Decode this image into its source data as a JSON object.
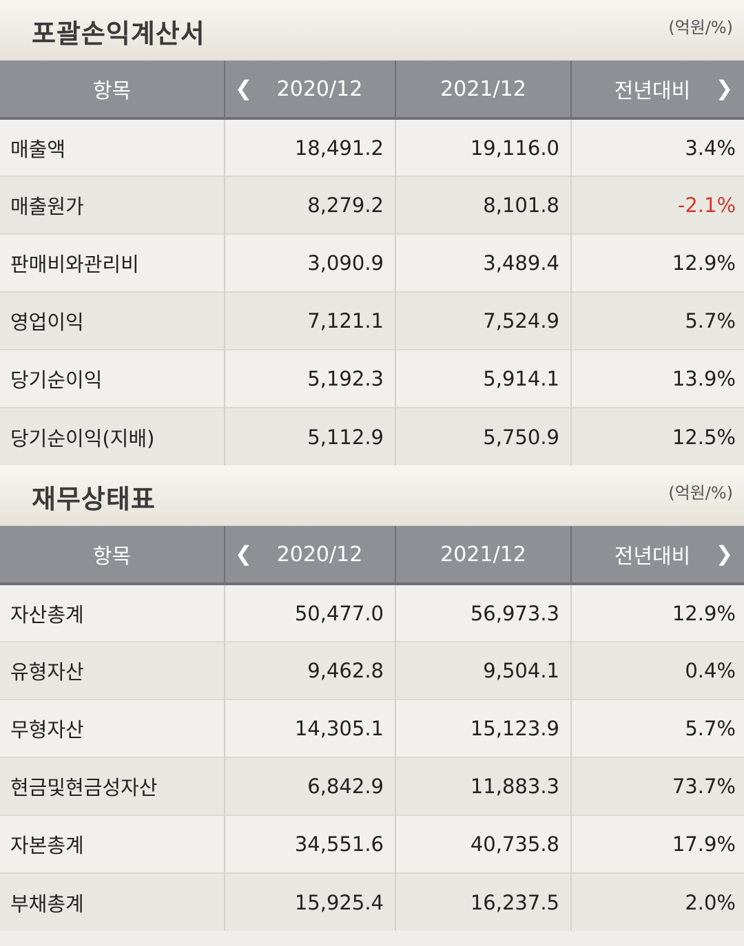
{
  "income": {
    "title": "포괄손익계산서",
    "unit": "(억원/%)",
    "headers": [
      "항목",
      "2020/12",
      "2021/12",
      "전년대비"
    ],
    "rows": [
      {
        "label": "매출액",
        "v2020": "18,491.2",
        "v2021": "19,116.0",
        "yoy": "3.4%"
      },
      {
        "label": "매출원가",
        "v2020": "8,279.2",
        "v2021": "8,101.8",
        "yoy": "-2.1%"
      },
      {
        "label": "판매비와관리비",
        "v2020": "3,090.9",
        "v2021": "3,489.4",
        "yoy": "12.9%"
      },
      {
        "label": "영업이익",
        "v2020": "7,121.1",
        "v2021": "7,524.9",
        "yoy": "5.7%"
      },
      {
        "label": "당기순이익",
        "v2020": "5,192.3",
        "v2021": "5,914.1",
        "yoy": "13.9%"
      },
      {
        "label": "당기순이익(지배)",
        "v2020": "5,112.9",
        "v2021": "5,750.9",
        "yoy": "12.5%"
      }
    ]
  },
  "balance": {
    "title": "재무상태표",
    "unit": "(억원/%)",
    "headers": [
      "항목",
      "2020/12",
      "2021/12",
      "전년대비"
    ],
    "rows": [
      {
        "label": "자산총계",
        "v2020": "50,477.0",
        "v2021": "56,973.3",
        "yoy": "12.9%"
      },
      {
        "label": "유형자산",
        "v2020": "9,462.8",
        "v2021": "9,504.1",
        "yoy": "0.4%"
      },
      {
        "label": "무형자산",
        "v2020": "14,305.1",
        "v2021": "15,123.9",
        "yoy": "5.7%"
      },
      {
        "label": "현금및현금성자산",
        "v2020": "6,842.9",
        "v2021": "11,883.3",
        "yoy": "73.7%"
      },
      {
        "label": "자본총계",
        "v2020": "34,551.6",
        "v2021": "40,735.8",
        "yoy": "17.9%"
      },
      {
        "label": "부채총계",
        "v2020": "15,925.4",
        "v2021": "16,237.5",
        "yoy": "2.0%"
      }
    ]
  },
  "icons": {
    "prev": "chevron-left-icon",
    "next": "chevron-right-icon"
  },
  "colors": {
    "negative": "#d23a2a",
    "header_bg": "#8e9096"
  }
}
